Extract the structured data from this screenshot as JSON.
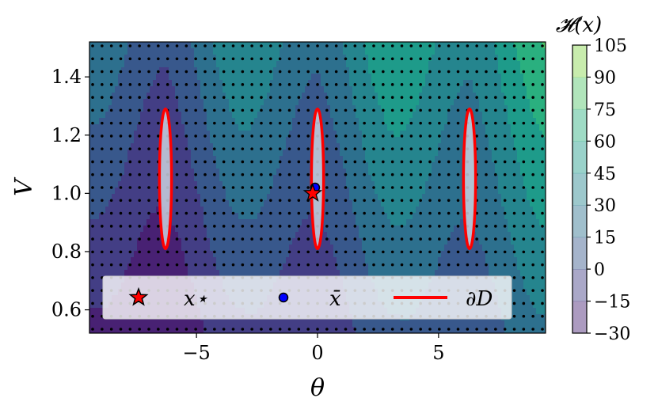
{
  "chart_data": {
    "type": "contour",
    "xlabel": "θ",
    "ylabel": "V",
    "xlim": [
      -9.42,
      9.42
    ],
    "ylim": [
      0.52,
      1.52
    ],
    "x_ticks": [
      -5,
      0,
      5
    ],
    "x_tick_labels": [
      "−5",
      "0",
      "5"
    ],
    "y_ticks": [
      0.6,
      0.8,
      1.0,
      1.2,
      1.4
    ],
    "y_tick_labels": [
      "0.6",
      "0.8",
      "1.0",
      "1.2",
      "1.4"
    ],
    "grid": false,
    "colorbar": {
      "title": "𝓗(x)",
      "levels": [
        -30,
        -15,
        0,
        15,
        30,
        45,
        60,
        75,
        90,
        105
      ],
      "tick_labels": [
        "−30",
        "−15",
        "0",
        "15",
        "30",
        "45",
        "60",
        "75",
        "90",
        "105"
      ],
      "colormap": "viridis",
      "colors": [
        "#482173",
        "#433e85",
        "#38588c",
        "#2d708e",
        "#25858e",
        "#1e9b8a",
        "#2ab07f",
        "#52c569",
        "#86d549",
        "#c2df23"
      ]
    },
    "sample_grid": {
      "n_theta": 49,
      "n_V": 23
    },
    "ellipses": [
      {
        "cx": -6.28,
        "cy": 1.05,
        "rx": 0.25,
        "ry": 0.24
      },
      {
        "cx": 0.0,
        "cy": 1.05,
        "rx": 0.25,
        "ry": 0.24
      },
      {
        "cx": 6.28,
        "cy": 1.05,
        "rx": 0.25,
        "ry": 0.24
      }
    ],
    "x_star": {
      "x": -0.2,
      "y": 1.0
    },
    "x_bar": {
      "x": -0.1,
      "y": 1.02
    },
    "legend": {
      "position": "lower center",
      "items": [
        {
          "label": "x⋆",
          "marker": "star",
          "color": "#ff0000"
        },
        {
          "label": "x̄",
          "marker": "circle",
          "color": "#0000ff"
        },
        {
          "label": "∂D",
          "marker": "line",
          "color": "#ff0000"
        }
      ]
    }
  }
}
